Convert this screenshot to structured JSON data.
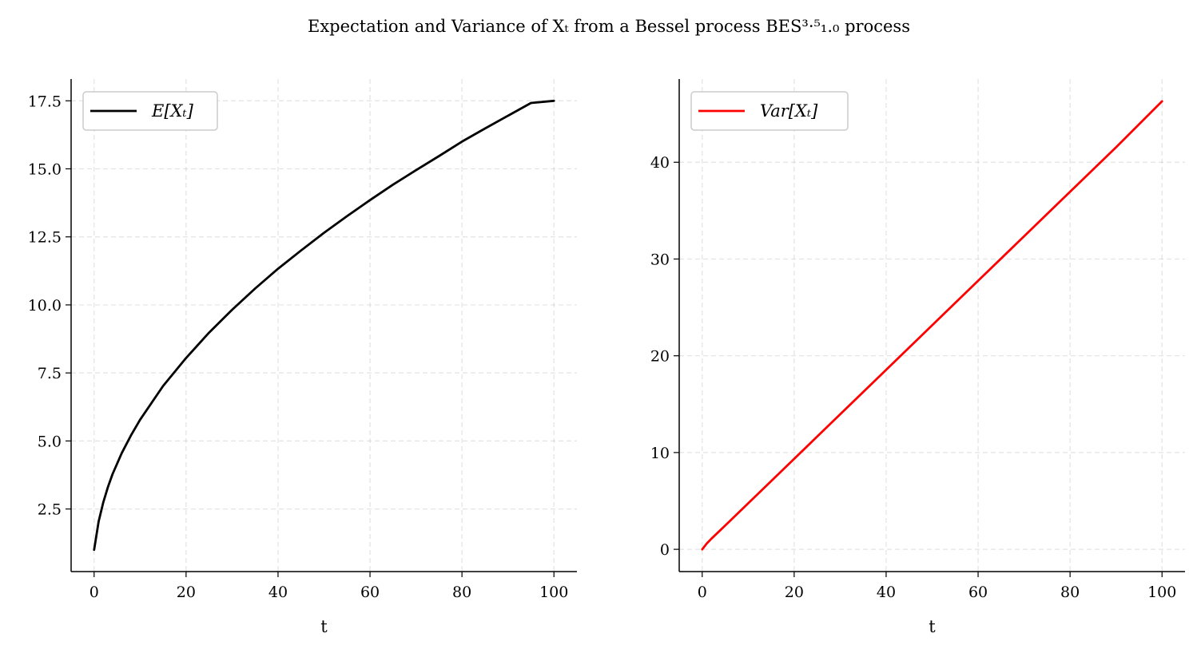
{
  "figure": {
    "title": "Expectation and Variance of Xₜ from a Bessel process BES³·⁵₁.₀ process"
  },
  "chart_data": [
    {
      "type": "line",
      "xlabel": "t",
      "ylabel": "",
      "xlim": [
        -5,
        105
      ],
      "ylim": [
        0.2,
        18.3
      ],
      "xticks": [
        0,
        20,
        40,
        60,
        80,
        100
      ],
      "xtick_labels": [
        "0",
        "20",
        "40",
        "60",
        "80",
        "100"
      ],
      "yticks": [
        2.5,
        5.0,
        7.5,
        10.0,
        12.5,
        15.0,
        17.5
      ],
      "ytick_labels": [
        "2.5",
        "5.0",
        "7.5",
        "10.0",
        "12.5",
        "15.0",
        "17.5"
      ],
      "grid": true,
      "legend": "top-left",
      "series": [
        {
          "name": "E[Xₜ]",
          "color": "#000000",
          "x": [
            0,
            1,
            2,
            3,
            4,
            6,
            8,
            10,
            15,
            20,
            25,
            30,
            35,
            40,
            45,
            50,
            55,
            60,
            65,
            70,
            75,
            80,
            85,
            90,
            95,
            100
          ],
          "y": [
            1.0,
            2.05,
            2.75,
            3.3,
            3.78,
            4.55,
            5.2,
            5.78,
            7.02,
            8.05,
            8.98,
            9.82,
            10.6,
            11.33,
            12.0,
            12.65,
            13.26,
            13.85,
            14.42,
            14.95,
            15.47,
            16.0,
            16.48,
            16.95,
            17.42,
            17.5
          ]
        }
      ]
    },
    {
      "type": "line",
      "xlabel": "t",
      "ylabel": "",
      "xlim": [
        -5,
        105
      ],
      "ylim": [
        -2.3,
        48.6
      ],
      "xticks": [
        0,
        20,
        40,
        60,
        80,
        100
      ],
      "xtick_labels": [
        "0",
        "20",
        "40",
        "60",
        "80",
        "100"
      ],
      "yticks": [
        0,
        10,
        20,
        30,
        40
      ],
      "ytick_labels": [
        "0",
        "10",
        "20",
        "30",
        "40"
      ],
      "grid": true,
      "legend": "top-left",
      "series": [
        {
          "name": "Var[Xₜ]",
          "color": "#ff0000",
          "x": [
            0,
            1,
            2,
            5,
            10,
            20,
            30,
            40,
            50,
            60,
            70,
            80,
            90,
            100
          ],
          "y": [
            0.0,
            0.6,
            1.1,
            2.45,
            4.75,
            9.35,
            13.95,
            18.55,
            23.15,
            27.75,
            32.35,
            36.95,
            41.55,
            46.3
          ]
        }
      ]
    }
  ]
}
